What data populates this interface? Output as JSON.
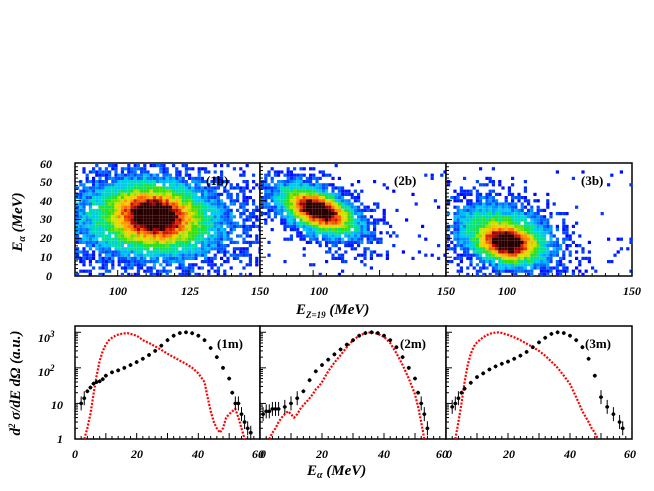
{
  "chart_data": [
    {
      "type": "heatmap",
      "id": "1b",
      "label": "(1b)",
      "x_ticks": [
        "100",
        "125",
        "150"
      ],
      "xlim": [
        85,
        150
      ],
      "y_ticks": [
        "0",
        "10",
        "20",
        "30",
        "40",
        "50",
        "60"
      ],
      "ylim": [
        0,
        60
      ],
      "hotspot": {
        "x": 113,
        "y": 32,
        "sx": 9,
        "sy": 9,
        "rho": -0.15
      },
      "cloud": {
        "x": 111,
        "y": 30,
        "sx": 18,
        "sy": 14,
        "rho": -0.05
      }
    },
    {
      "type": "heatmap",
      "id": "2b",
      "label": "(2b)",
      "x_ticks": [
        "100",
        "150"
      ],
      "xlim": [
        80,
        150
      ],
      "ylim": [
        0,
        60
      ],
      "hotspot": {
        "x": 102,
        "y": 35,
        "sx": 7,
        "sy": 6,
        "rho": -0.5
      },
      "cloud": {
        "x": 102,
        "y": 34,
        "sx": 11,
        "sy": 10,
        "rho": -0.55
      }
    },
    {
      "type": "heatmap",
      "id": "3b",
      "label": "(3b)",
      "x_ticks": [
        "100",
        "150"
      ],
      "xlim": [
        80,
        150
      ],
      "ylim": [
        0,
        60
      ],
      "hotspot": {
        "x": 103,
        "y": 17,
        "sx": 7,
        "sy": 6,
        "rho": -0.2
      },
      "cloud": {
        "x": 102,
        "y": 22,
        "sx": 12,
        "sy": 11,
        "rho": -0.35
      }
    },
    {
      "type": "line",
      "id": "1m",
      "label": "(1m)",
      "scale_y": "log",
      "xlim": [
        0,
        60
      ],
      "ylim": [
        1,
        1500
      ],
      "series": [
        {
          "color": "#000000",
          "style": "points-errorbars",
          "x": [
            2,
            3,
            4,
            5,
            6,
            7,
            8,
            9,
            10,
            12,
            14,
            16,
            18,
            20,
            22,
            24,
            26,
            28,
            30,
            32,
            34,
            36,
            38,
            40,
            42,
            44,
            46,
            48,
            50,
            51,
            52,
            53,
            54,
            55,
            56,
            57
          ],
          "y": [
            10,
            14,
            22,
            28,
            36,
            40,
            42,
            48,
            60,
            75,
            85,
            100,
            120,
            145,
            180,
            230,
            300,
            420,
            600,
            800,
            950,
            1000,
            940,
            800,
            600,
            360,
            200,
            100,
            50,
            20,
            10,
            10,
            5,
            3,
            2,
            1.5
          ]
        },
        {
          "color": "#ff0000",
          "style": "dotted",
          "x": [
            3,
            4,
            5,
            6,
            7,
            8,
            9,
            10,
            11,
            12,
            13,
            14,
            15,
            16,
            17,
            18,
            19,
            20,
            21,
            22,
            24,
            26,
            28,
            30,
            32,
            34,
            36,
            38,
            40,
            42,
            43,
            44,
            45,
            46,
            47,
            48,
            49,
            50,
            51,
            52,
            53,
            54,
            55
          ],
          "y": [
            1,
            2,
            5,
            18,
            60,
            160,
            300,
            450,
            600,
            700,
            790,
            860,
            900,
            930,
            950,
            900,
            850,
            800,
            700,
            600,
            500,
            400,
            320,
            250,
            200,
            160,
            130,
            100,
            70,
            40,
            15,
            6,
            3,
            2,
            1.5,
            2,
            4,
            5,
            6,
            7,
            4,
            2,
            1
          ]
        }
      ]
    },
    {
      "type": "line",
      "id": "2m",
      "label": "(2m)",
      "scale_y": "log",
      "xlim": [
        0,
        60
      ],
      "ylim": [
        1,
        1500
      ],
      "series": [
        {
          "color": "#000000",
          "style": "points-errorbars",
          "x": [
            1,
            2,
            3,
            4,
            5,
            6,
            8,
            10,
            12,
            14,
            16,
            18,
            20,
            22,
            24,
            26,
            28,
            30,
            32,
            34,
            36,
            38,
            40,
            42,
            44,
            46,
            48,
            50,
            51,
            52,
            53,
            54
          ],
          "y": [
            5,
            6,
            6,
            7,
            7,
            7,
            8,
            10,
            14,
            22,
            45,
            80,
            120,
            170,
            240,
            330,
            450,
            600,
            800,
            950,
            1000,
            950,
            800,
            600,
            380,
            200,
            100,
            50,
            20,
            10,
            5,
            2
          ]
        },
        {
          "color": "#ff0000",
          "style": "dotted",
          "x": [
            3,
            4,
            5,
            6,
            7,
            8,
            9,
            10,
            11,
            12,
            13,
            14,
            15,
            16,
            17,
            18,
            19,
            20,
            22,
            24,
            26,
            28,
            30,
            32,
            34,
            36,
            38,
            40,
            42,
            44,
            46,
            48,
            50,
            51,
            52,
            53
          ],
          "y": [
            1,
            1.5,
            2,
            3,
            4,
            5,
            6,
            5,
            4,
            5,
            7,
            9,
            11,
            14,
            18,
            25,
            30,
            40,
            80,
            140,
            230,
            380,
            600,
            800,
            950,
            1000,
            900,
            750,
            500,
            260,
            120,
            50,
            18,
            8,
            3,
            1
          ]
        }
      ]
    },
    {
      "type": "line",
      "id": "3m",
      "label": "(3m)",
      "scale_y": "log",
      "xlim": [
        0,
        60
      ],
      "ylim": [
        1,
        1500
      ],
      "series": [
        {
          "color": "#000000",
          "style": "points-errorbars",
          "x": [
            2,
            3,
            4,
            5,
            6,
            8,
            10,
            12,
            14,
            16,
            18,
            20,
            22,
            24,
            26,
            28,
            30,
            32,
            34,
            36,
            38,
            40,
            42,
            44,
            46,
            48,
            50,
            52,
            54,
            56,
            57
          ],
          "y": [
            8,
            10,
            14,
            20,
            26,
            38,
            55,
            70,
            90,
            110,
            130,
            150,
            180,
            220,
            280,
            380,
            520,
            700,
            900,
            1000,
            950,
            800,
            600,
            380,
            180,
            60,
            15,
            8,
            5,
            3,
            2
          ]
        },
        {
          "color": "#ff0000",
          "style": "dotted",
          "x": [
            3,
            4,
            5,
            6,
            7,
            8,
            9,
            10,
            11,
            12,
            13,
            14,
            15,
            16,
            17,
            18,
            19,
            20,
            22,
            24,
            26,
            28,
            30,
            32,
            34,
            36,
            38,
            40,
            42,
            44,
            46,
            47,
            48,
            49
          ],
          "y": [
            1,
            3,
            10,
            40,
            120,
            250,
            400,
            520,
            620,
            720,
            820,
            900,
            950,
            980,
            990,
            960,
            900,
            850,
            720,
            600,
            480,
            380,
            300,
            220,
            150,
            100,
            60,
            35,
            15,
            6,
            3,
            2,
            1.5,
            1
          ]
        }
      ]
    }
  ],
  "top_y_title": "E_α (MeV)",
  "top_x_title": "E_{Z=19} (MeV)",
  "bottom_y_title": "d²σ/dE dΩ (a.u.)",
  "bottom_x_title": "E_α (MeV)",
  "bottom_x_ticks": [
    "0",
    "20",
    "40",
    "60"
  ],
  "bottom_y_ticks": [
    "1",
    "10",
    "10 2",
    "10 3"
  ]
}
